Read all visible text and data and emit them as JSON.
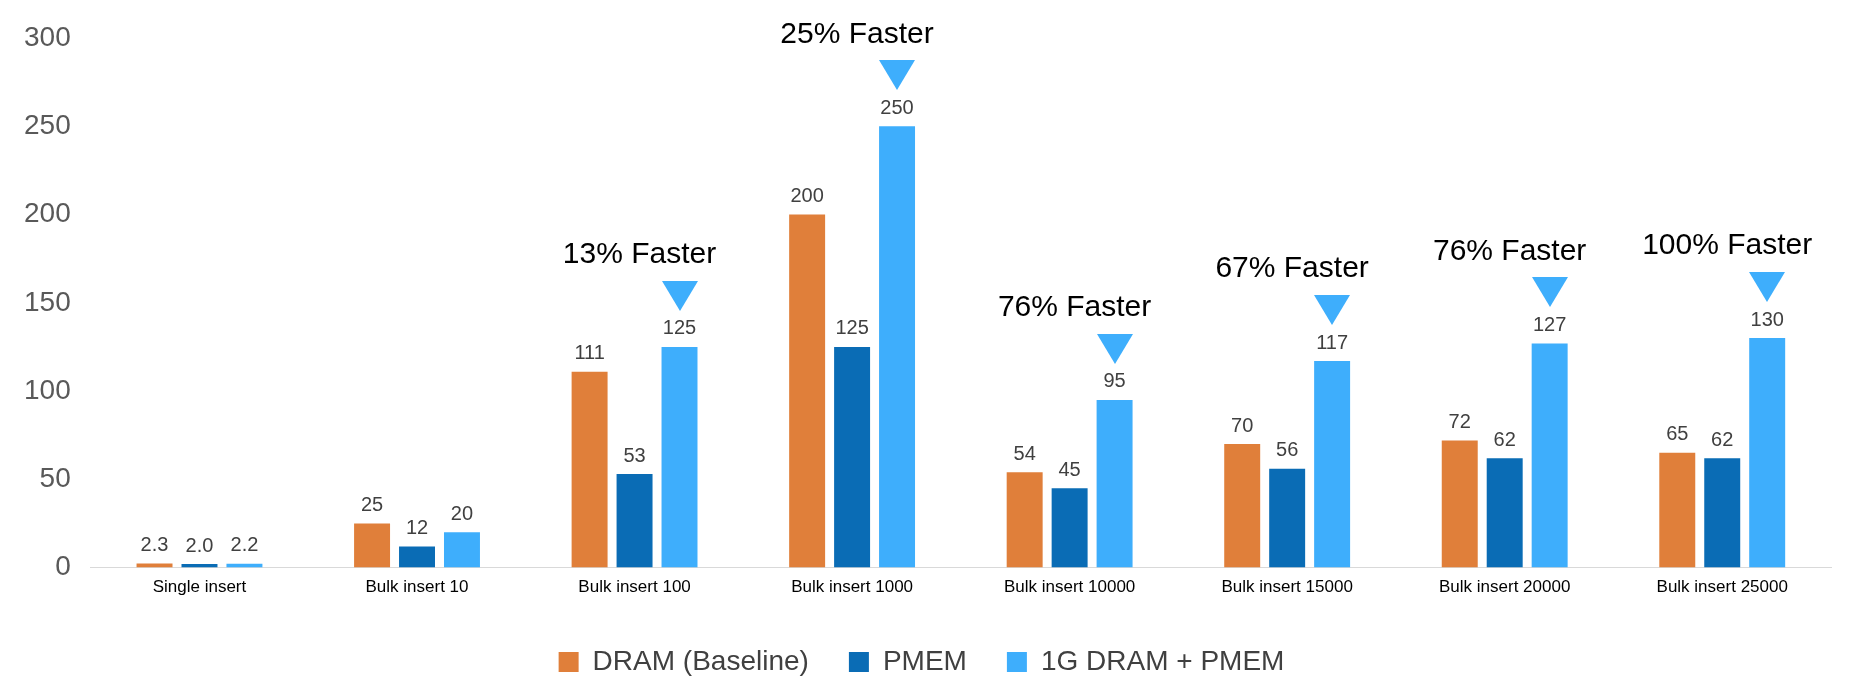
{
  "chart_data": {
    "type": "bar",
    "categories": [
      "Single insert",
      "Bulk insert 10",
      "Bulk insert 100",
      "Bulk insert 1000",
      "Bulk insert 10000",
      "Bulk insert 15000",
      "Bulk insert 20000",
      "Bulk insert 25000"
    ],
    "series": [
      {
        "name": "DRAM (Baseline)",
        "color": "#e07f3a",
        "values": [
          2.3,
          25,
          111,
          200,
          54,
          70,
          72,
          65
        ],
        "value_labels": [
          "2.3",
          "25",
          "111",
          "200",
          "54",
          "70",
          "72",
          "65"
        ]
      },
      {
        "name": "PMEM",
        "color": "#0a6cb5",
        "values": [
          2.0,
          12,
          53,
          125,
          45,
          56,
          62,
          62
        ],
        "value_labels": [
          "2.0",
          "12",
          "53",
          "125",
          "45",
          "56",
          "62",
          "62"
        ]
      },
      {
        "name": "1G DRAM + PMEM",
        "color": "#3eaefc",
        "values": [
          2.2,
          20,
          125,
          250,
          95,
          117,
          127,
          130
        ],
        "value_labels": [
          "2.2",
          "20",
          "125",
          "250",
          "95",
          "117",
          "127",
          "130"
        ]
      }
    ],
    "ylim": [
      0,
      300
    ],
    "yticks": [
      0,
      50,
      100,
      150,
      200,
      250,
      300
    ],
    "grid": false,
    "legend": "bottom",
    "annotations": [
      "13% Faster",
      "25% Faster",
      "76% Faster",
      "67% Faster",
      "76% Faster",
      "100% Faster"
    ]
  }
}
